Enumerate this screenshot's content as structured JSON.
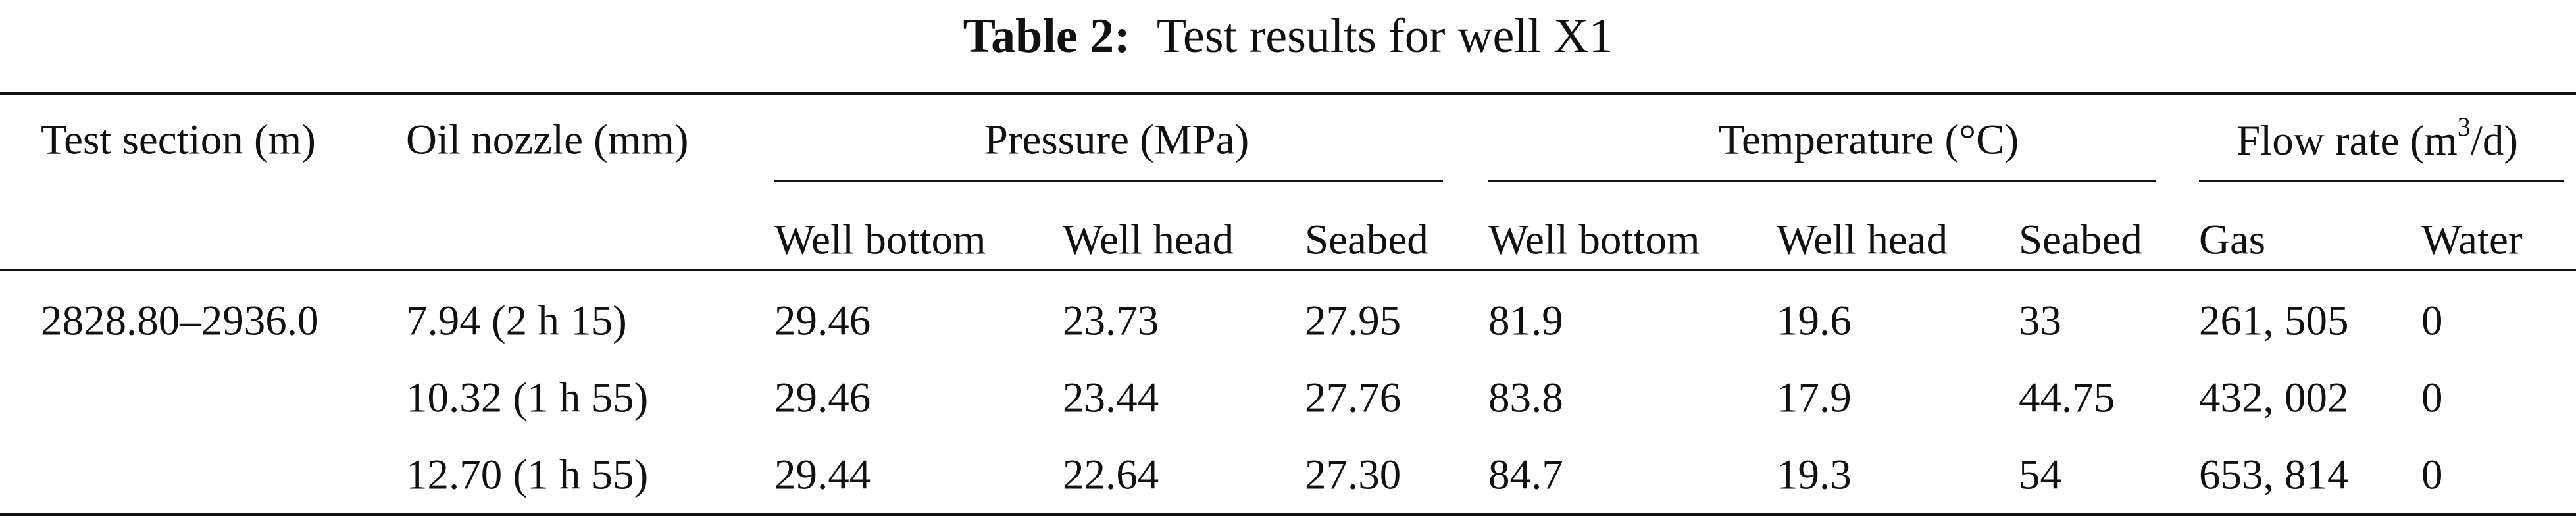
{
  "caption": {
    "label": "Table 2:",
    "text": "Test results for well X1"
  },
  "table": {
    "header_top": {
      "test_section": "Test section (m)",
      "oil_nozzle": "Oil nozzle (mm)",
      "pressure": "Pressure (MPa)",
      "temperature": "Temperature (°C)",
      "flow_rate_pre": "Flow rate (m",
      "flow_rate_sup": "3",
      "flow_rate_post": "/d)"
    },
    "header_sub": [
      "Well bottom",
      "Well head",
      "Seabed",
      "Well bottom",
      "Well head",
      "Seabed",
      "Gas",
      "Water"
    ],
    "rows": [
      [
        "2828.80–2936.0",
        "7.94 (2 h 15)",
        "29.46",
        "23.73",
        "27.95",
        "81.9",
        "19.6",
        "33",
        "261, 505",
        "0"
      ],
      [
        "",
        "10.32 (1 h 55)",
        "29.46",
        "23.44",
        "27.76",
        "83.8",
        "17.9",
        "44.75",
        "432, 002",
        "0"
      ],
      [
        "",
        "12.70 (1 h 55)",
        "29.44",
        "22.64",
        "27.30",
        "84.7",
        "19.3",
        "54",
        "653, 814",
        "0"
      ]
    ]
  }
}
